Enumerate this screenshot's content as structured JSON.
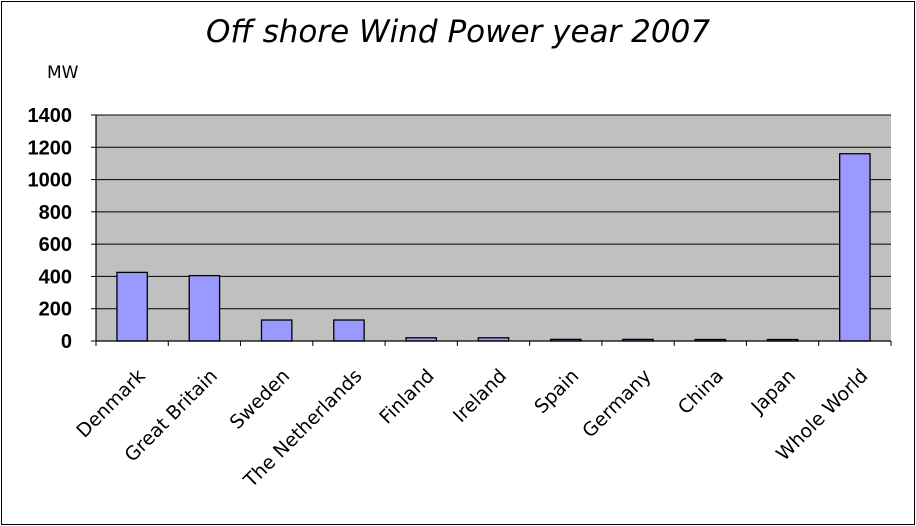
{
  "chart_data": {
    "type": "bar",
    "title": "Off shore Wind Power year 2007",
    "ylabel": "MW",
    "xlabel": "",
    "ylim": [
      0,
      1400
    ],
    "yticks": [
      0,
      200,
      400,
      600,
      800,
      1000,
      1200,
      1400
    ],
    "categories": [
      "Denmark",
      "Great Britain",
      "Sweden",
      "The Netherlands",
      "Finland",
      "Ireland",
      "Spain",
      "Germany",
      "China",
      "Japan",
      "Whole World"
    ],
    "values": [
      425,
      405,
      130,
      130,
      20,
      20,
      10,
      10,
      2,
      2,
      1160
    ],
    "grid": "horizontal",
    "colors": {
      "bar_fill": "#9999ff",
      "bar_stroke": "#000000",
      "plot_background": "#c0c0c0",
      "grid": "#000000"
    }
  }
}
